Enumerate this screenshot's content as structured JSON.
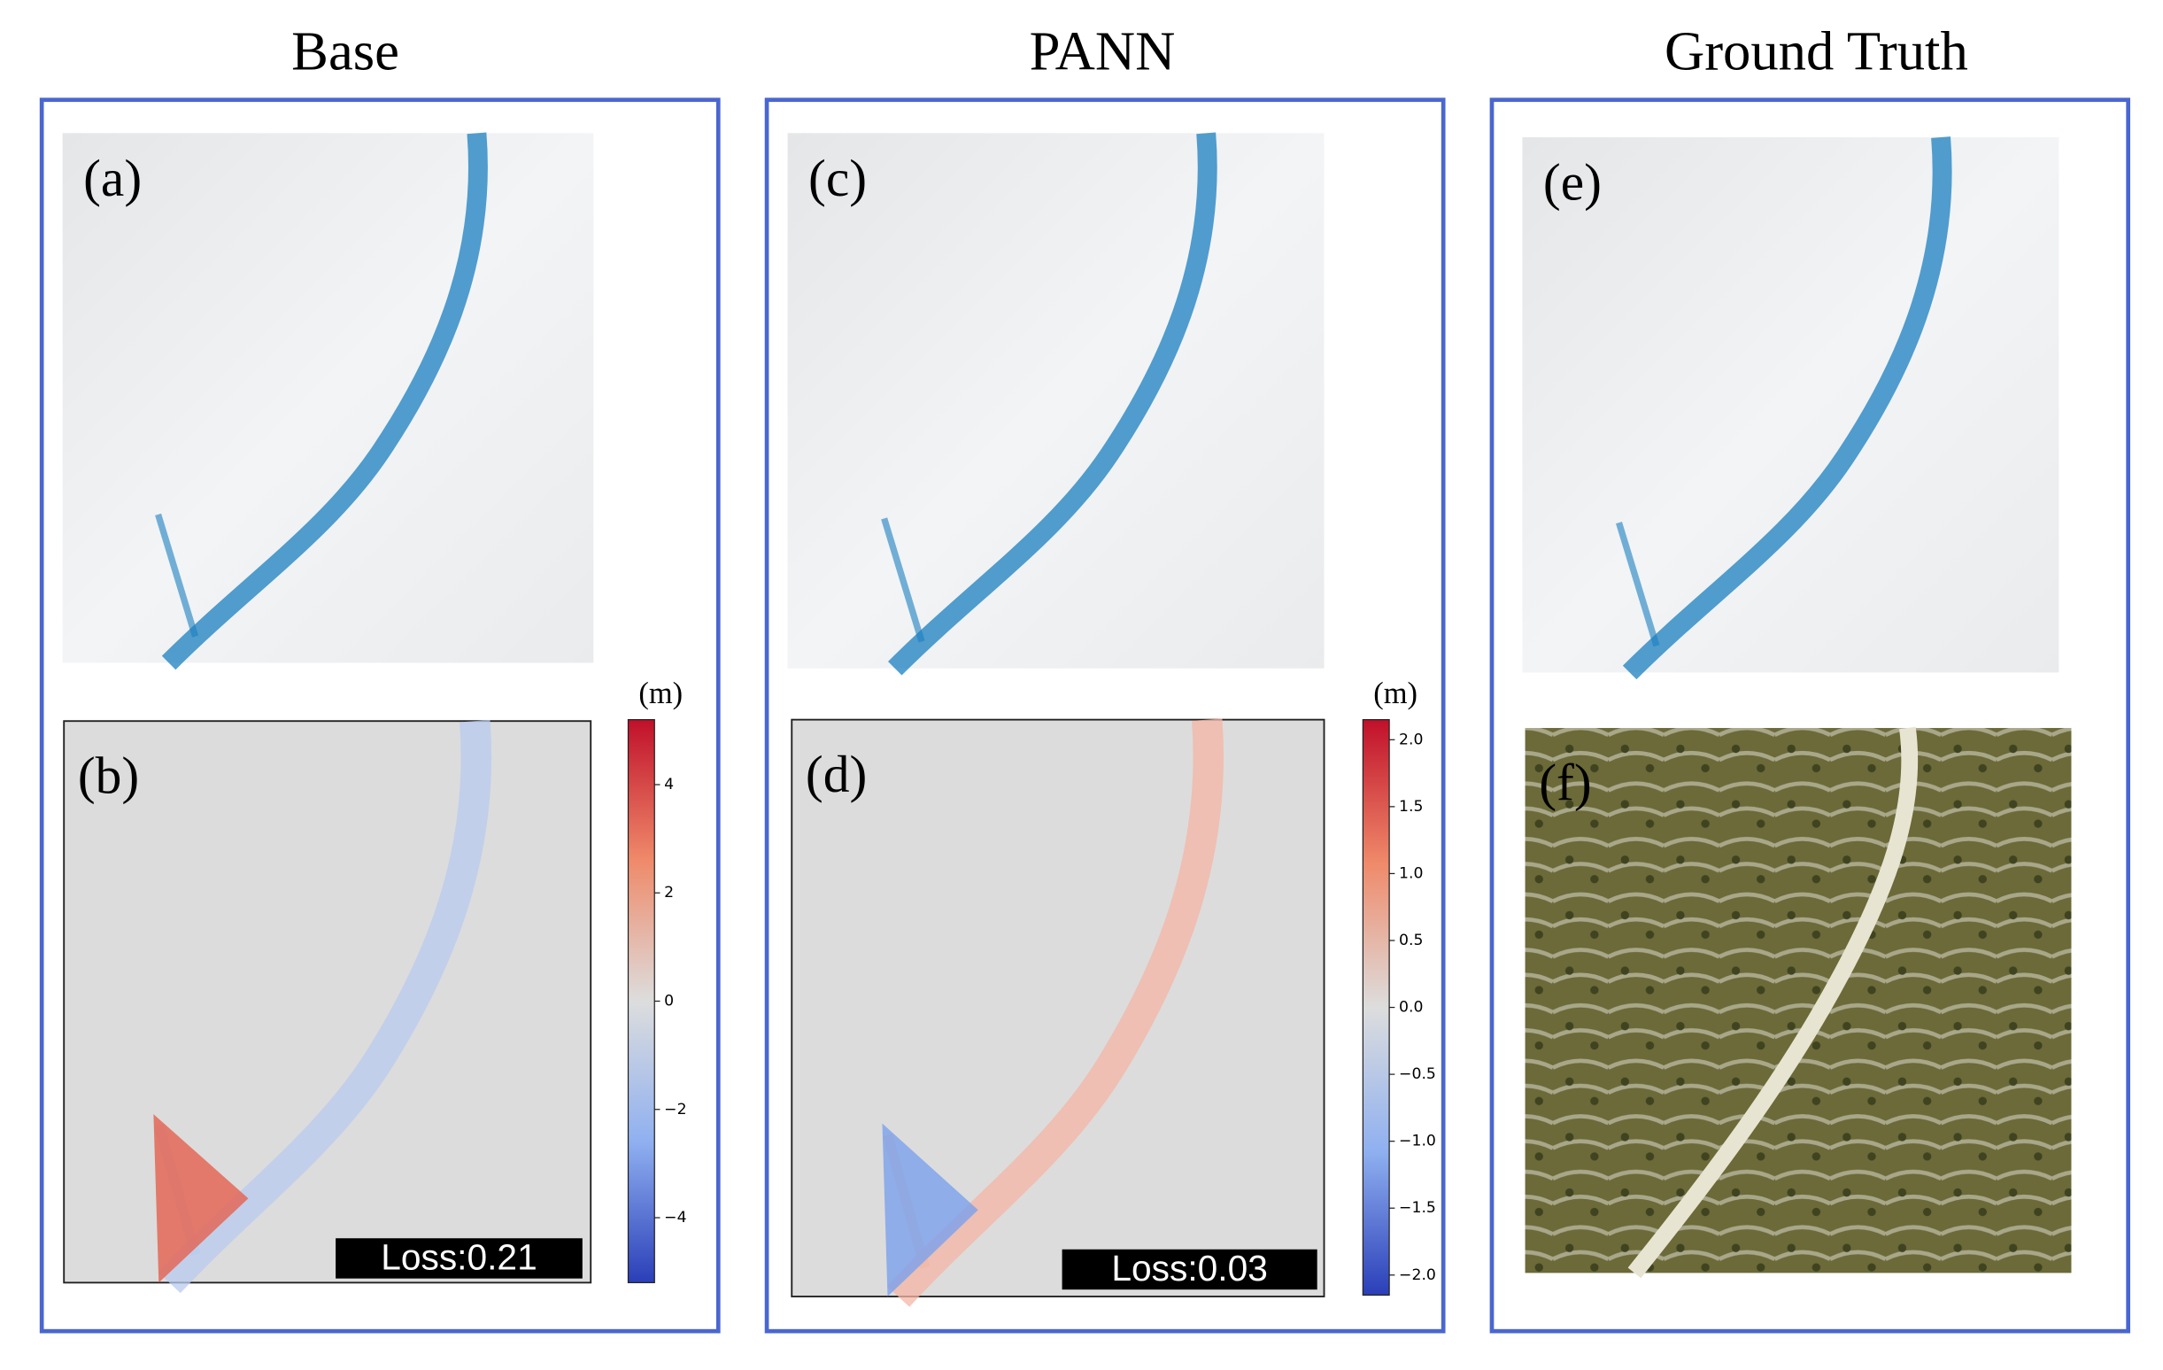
{
  "columns": [
    {
      "title": "Base",
      "panels": [
        {
          "label": "(a)"
        },
        {
          "label": "(b)",
          "loss": "Loss:0.21"
        }
      ],
      "colorbar": {
        "unit": "(m)",
        "lim": [
          -5.2,
          5.2
        ],
        "ticks": [
          4,
          2,
          0,
          {
            "value": -2,
            "label": "−2"
          },
          {
            "value": -4,
            "label": "−4"
          }
        ]
      }
    },
    {
      "title": "PANN",
      "panels": [
        {
          "label": "(c)"
        },
        {
          "label": "(d)",
          "loss": "Loss:0.03"
        }
      ],
      "colorbar": {
        "unit": "(m)",
        "lim": [
          -2.15,
          2.15
        ],
        "ticks": [
          {
            "value": 2,
            "label": "2.0"
          },
          1.5,
          {
            "value": 1,
            "label": "1.0"
          },
          0.5,
          {
            "value": 0,
            "label": "0.0"
          },
          {
            "value": -0.5,
            "label": "−0.5"
          },
          {
            "value": -1,
            "label": "−1.0"
          },
          {
            "value": -1.5,
            "label": "−1.5"
          },
          {
            "value": -2,
            "label": "−2.0"
          }
        ]
      }
    },
    {
      "title": "Ground Truth",
      "panels": [
        {
          "label": "(e)"
        },
        {
          "label": "(f)"
        }
      ]
    }
  ]
}
